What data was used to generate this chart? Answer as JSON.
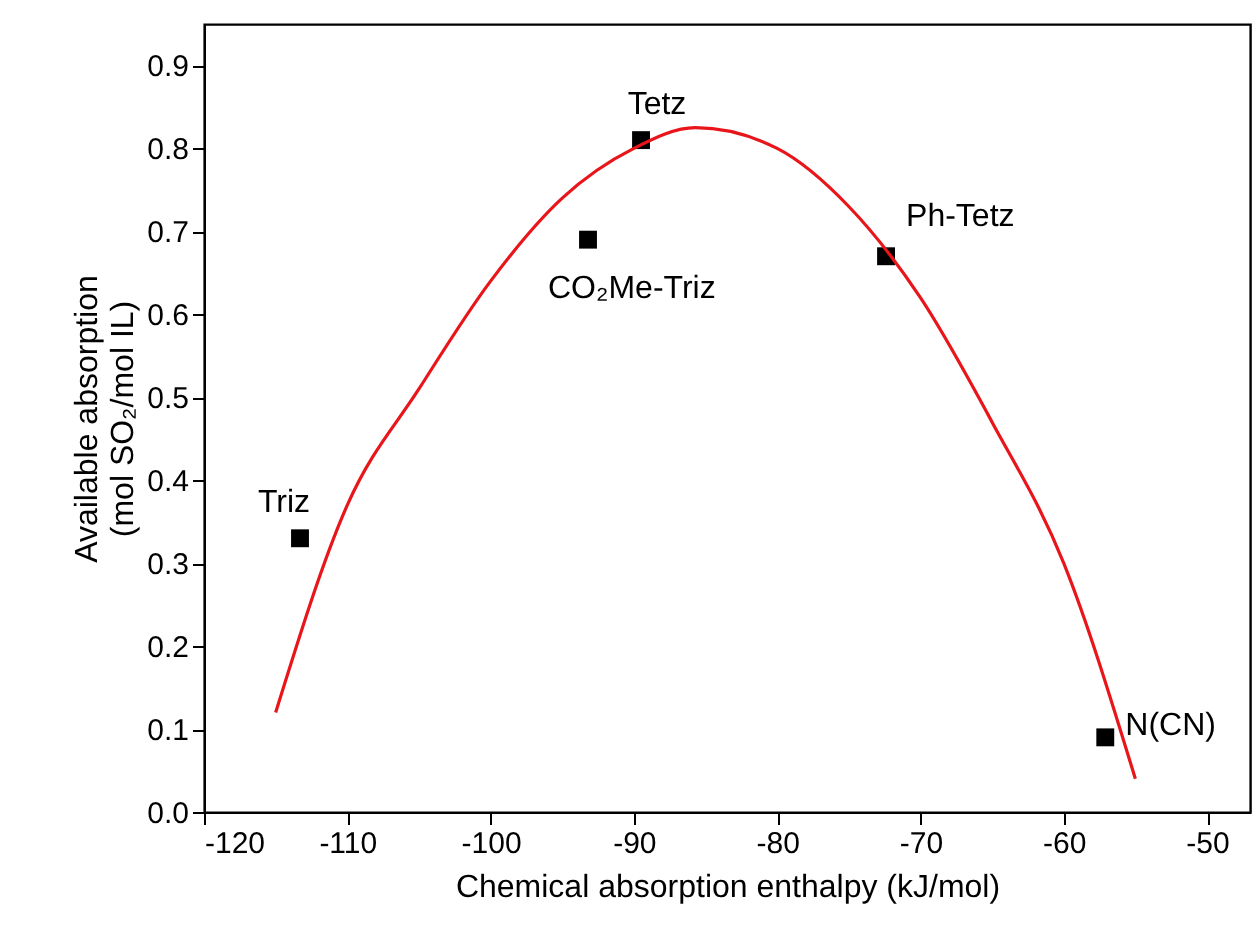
{
  "chart_data": {
    "type": "scatter",
    "xlabel": "Chemical absorption enthalpy (kJ/mol)",
    "ylabel": "Available absorption\n(mol SO₂/mol IL)",
    "xlim": [
      -120,
      -47
    ],
    "ylim": [
      0,
      0.95
    ],
    "xticks": [
      -120,
      -110,
      -100,
      -90,
      -80,
      -70,
      -60,
      -50
    ],
    "yticks": [
      {
        "value": 0,
        "label": "0.0"
      },
      0.1,
      0.2,
      0.3,
      0.4,
      0.5,
      0.6,
      0.7,
      0.8,
      0.9
    ],
    "series": [
      {
        "color": "#000000",
        "marker": "square",
        "x": [
          -113.3,
          -93.2,
          -89.5,
          -72.4,
          -57.1
        ],
        "values": [
          0.33,
          0.69,
          0.81,
          0.67,
          0.09
        ]
      },
      {
        "type": "line",
        "color": "#e8161b",
        "marker": "none",
        "x": [
          -115,
          -110,
          -105,
          -100,
          -95,
          -90,
          -85.7,
          -80,
          -75,
          -70,
          -65,
          -60,
          -55
        ],
        "values": [
          0.12,
          0.37,
          0.51,
          0.64,
          0.74,
          0.8,
          0.825,
          0.8,
          0.73,
          0.62,
          0.47,
          0.3,
          0.04
        ]
      }
    ],
    "annotations": [
      {
        "text": "Triz",
        "x": -113.3,
        "y": 0.33
      },
      {
        "text": "CO₂Me-Triz",
        "x": -93.2,
        "y": 0.69
      },
      {
        "text": "Tetz",
        "x": -89.5,
        "y": 0.81
      },
      {
        "text": "Ph-Tetz",
        "x": -72.4,
        "y": 0.67
      },
      {
        "text": "N(CN)",
        "x": -57.1,
        "y": 0.09
      }
    ],
    "grid": false
  }
}
